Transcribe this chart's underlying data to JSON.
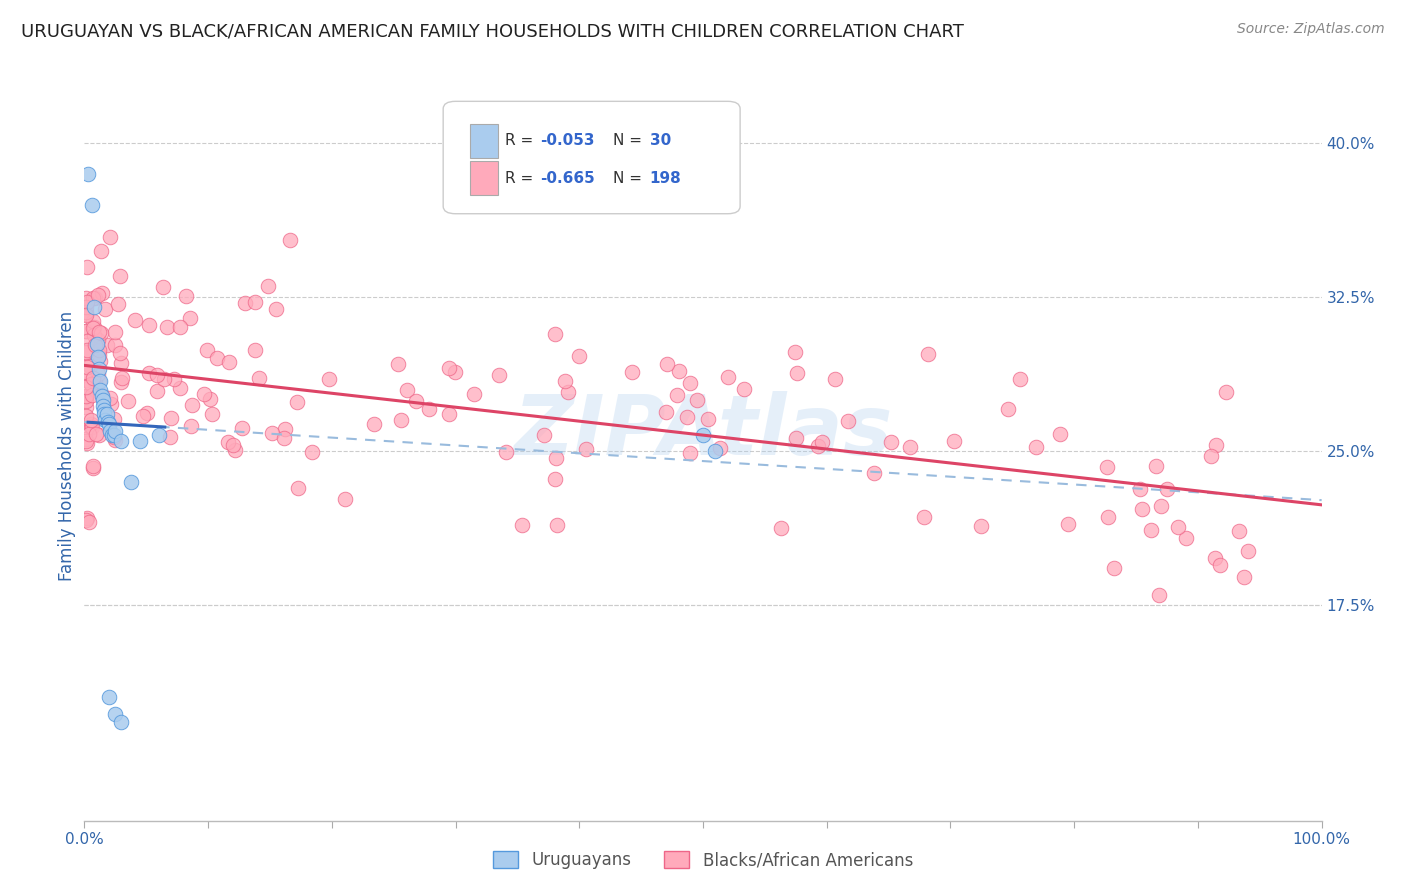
{
  "title": "URUGUAYAN VS BLACK/AFRICAN AMERICAN FAMILY HOUSEHOLDS WITH CHILDREN CORRELATION CHART",
  "source": "Source: ZipAtlas.com",
  "ylabel": "Family Households with Children",
  "xlim": [
    0.0,
    1.0
  ],
  "ylim": [
    0.07,
    0.435
  ],
  "yticks": [
    0.175,
    0.25,
    0.325,
    0.4
  ],
  "ytick_labels": [
    "17.5%",
    "25.0%",
    "32.5%",
    "40.0%"
  ],
  "xtick_labels": [
    "0.0%",
    "",
    "",
    "",
    "",
    "",
    "",
    "",
    "",
    "",
    "100.0%"
  ],
  "uruguayan_fill": "#aaccee",
  "uruguayan_edge": "#5599dd",
  "black_fill": "#ffaabb",
  "black_edge": "#ee6688",
  "trend_blue": "#3366bb",
  "trend_pink": "#dd4466",
  "trend_dash": "#99bbdd",
  "r_uruguayan": -0.053,
  "n_uruguayan": 30,
  "r_black": -0.665,
  "n_black": 198,
  "legend_label_uruguayan": "Uruguayans",
  "legend_label_black": "Blacks/African Americans",
  "title_fontsize": 13,
  "source_fontsize": 10,
  "axis_label_fontsize": 12,
  "tick_fontsize": 11,
  "background_color": "#ffffff",
  "grid_color": "#cccccc",
  "watermark_text": "ZIPAtlas",
  "watermark_color": "#aaccee",
  "watermark_alpha": 0.3,
  "watermark_fontsize": 60
}
